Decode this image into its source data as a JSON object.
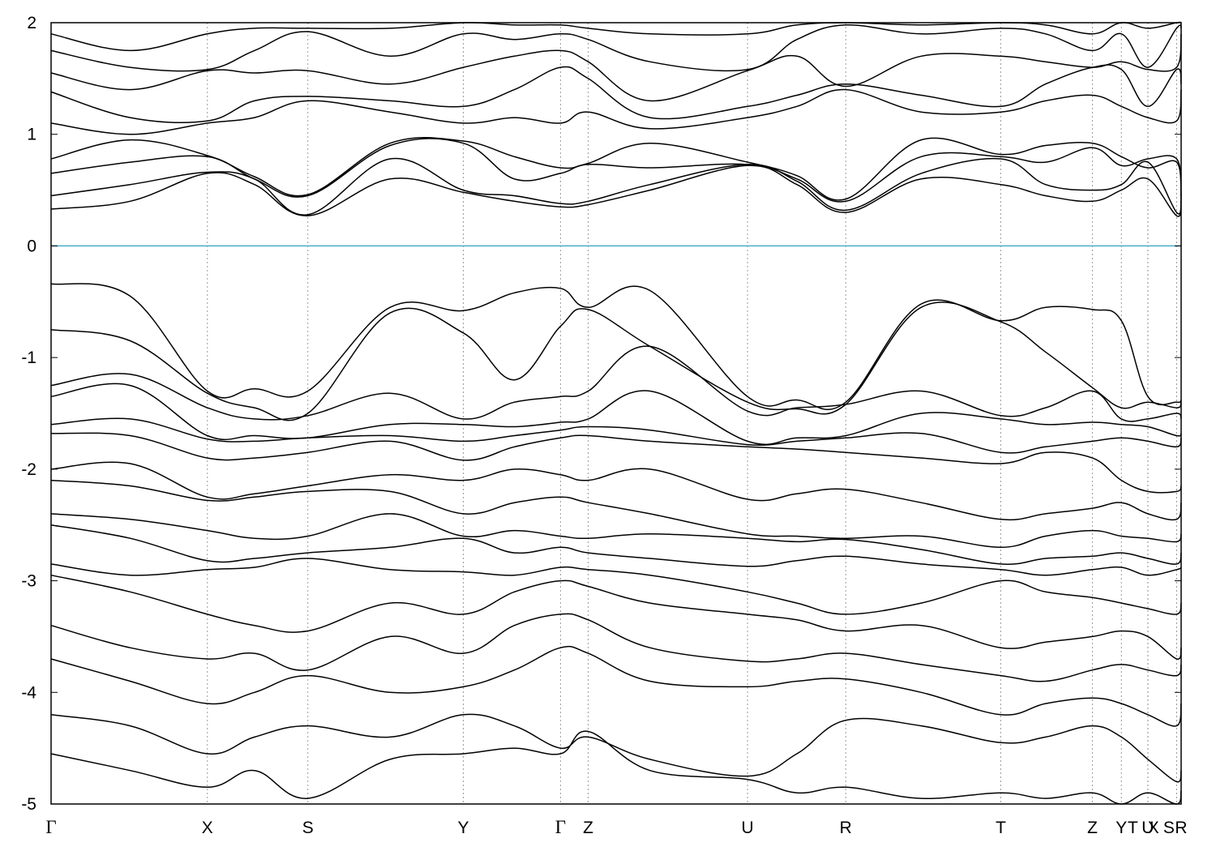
{
  "chart_data": {
    "type": "line",
    "title": "",
    "xlabel": "",
    "ylabel": "",
    "ylim": [
      -5,
      2
    ],
    "y_ticks": [
      2,
      1,
      0,
      -1,
      -2,
      -3,
      -4,
      -5
    ],
    "x_labels": [
      "Γ",
      "X",
      "S",
      "Y",
      "Γ",
      "Z",
      "U",
      "R",
      "T",
      "Z",
      "Y",
      "T",
      "U",
      "X",
      "S",
      "R"
    ],
    "kpoint_positions": [
      0.0,
      0.1383,
      0.2272,
      0.3648,
      0.4508,
      0.4753,
      0.6163,
      0.7032,
      0.8404,
      0.9215,
      0.9471,
      0.9706,
      0.9705,
      0.996,
      0.996,
      1.0
    ],
    "kpoint_label_positions": [
      0.0,
      0.1383,
      0.2272,
      0.3648,
      0.4508,
      0.4753,
      0.6163,
      0.7032,
      0.8404,
      0.9215,
      0.9471,
      0.9573,
      0.9705,
      0.9754,
      0.9892,
      1.0
    ],
    "fermi_level": 0,
    "fermi_color": "#4aaecc",
    "grid": "vertical dashed lines at high-symmetry points",
    "series_sample_x": [
      0.0,
      0.07,
      0.1383,
      0.18,
      0.2272,
      0.3,
      0.3648,
      0.41,
      0.4508,
      0.4753,
      0.53,
      0.6163,
      0.66,
      0.7032,
      0.77,
      0.8404,
      0.88,
      0.9215,
      0.9471,
      0.9706,
      0.996,
      1.0
    ],
    "series": [
      {
        "values": [
          -0.34,
          -0.45,
          -1.3,
          -1.28,
          -1.3,
          -0.55,
          -0.58,
          -0.42,
          -0.38,
          -0.55,
          -0.4,
          -1.35,
          -1.38,
          -1.4,
          -0.52,
          -0.67,
          -0.55,
          -0.57,
          -0.67,
          -1.35,
          -1.4,
          -1.38
        ]
      },
      {
        "values": [
          -0.75,
          -0.85,
          -1.32,
          -1.45,
          -1.5,
          -0.6,
          -0.78,
          -1.2,
          -0.72,
          -0.57,
          -0.9,
          -1.4,
          -1.46,
          -1.42,
          -0.55,
          -0.68,
          -0.95,
          -1.27,
          -1.45,
          -1.4,
          -1.45,
          -1.4
        ]
      },
      {
        "values": [
          -1.25,
          -1.15,
          -1.45,
          -1.55,
          -1.52,
          -1.32,
          -1.55,
          -1.4,
          -1.35,
          -1.3,
          -0.9,
          -1.48,
          -1.45,
          -1.42,
          -1.3,
          -1.52,
          -1.45,
          -1.3,
          -1.55,
          -1.55,
          -1.5,
          -1.55
        ]
      },
      {
        "values": [
          -1.35,
          -1.25,
          -1.7,
          -1.7,
          -1.72,
          -1.6,
          -1.6,
          -1.62,
          -1.58,
          -1.55,
          -1.3,
          -1.75,
          -1.72,
          -1.7,
          -1.5,
          -1.55,
          -1.6,
          -1.58,
          -1.6,
          -1.62,
          -1.7,
          -1.68
        ]
      },
      {
        "values": [
          -1.6,
          -1.55,
          -1.73,
          -1.75,
          -1.72,
          -1.7,
          -1.75,
          -1.7,
          -1.65,
          -1.62,
          -1.65,
          -1.78,
          -1.75,
          -1.72,
          -1.68,
          -1.85,
          -1.8,
          -1.75,
          -1.72,
          -1.75,
          -1.8,
          -1.72
        ]
      },
      {
        "values": [
          -1.68,
          -1.7,
          -1.9,
          -1.9,
          -1.85,
          -1.75,
          -1.92,
          -1.8,
          -1.72,
          -1.7,
          -1.75,
          -1.8,
          -1.82,
          -1.85,
          -1.9,
          -1.95,
          -1.85,
          -1.9,
          -2.1,
          -2.2,
          -2.2,
          -2.15
        ]
      },
      {
        "values": [
          -2.0,
          -1.95,
          -2.25,
          -2.22,
          -2.15,
          -2.05,
          -2.1,
          -2.0,
          -2.05,
          -2.1,
          -2.0,
          -2.27,
          -2.22,
          -2.18,
          -2.3,
          -2.45,
          -2.4,
          -2.35,
          -2.3,
          -2.4,
          -2.45,
          -2.3
        ]
      },
      {
        "values": [
          -2.1,
          -2.15,
          -2.28,
          -2.25,
          -2.2,
          -2.2,
          -2.4,
          -2.3,
          -2.25,
          -2.3,
          -2.4,
          -2.58,
          -2.6,
          -2.62,
          -2.6,
          -2.7,
          -2.6,
          -2.55,
          -2.6,
          -2.62,
          -2.65,
          -2.58
        ]
      },
      {
        "values": [
          -2.4,
          -2.45,
          -2.55,
          -2.62,
          -2.6,
          -2.4,
          -2.6,
          -2.55,
          -2.6,
          -2.62,
          -2.58,
          -2.62,
          -2.65,
          -2.63,
          -2.72,
          -2.85,
          -2.8,
          -2.78,
          -2.75,
          -2.8,
          -2.85,
          -2.75
        ]
      },
      {
        "values": [
          -2.5,
          -2.62,
          -2.82,
          -2.8,
          -2.75,
          -2.7,
          -2.62,
          -2.75,
          -2.7,
          -2.75,
          -2.8,
          -2.87,
          -2.82,
          -2.78,
          -2.85,
          -2.9,
          -2.95,
          -2.9,
          -2.88,
          -2.95,
          -2.9,
          -2.88
        ]
      },
      {
        "values": [
          -2.85,
          -2.95,
          -2.9,
          -2.88,
          -2.8,
          -2.9,
          -2.92,
          -2.95,
          -2.88,
          -2.9,
          -2.95,
          -3.1,
          -3.2,
          -3.3,
          -3.2,
          -3.0,
          -3.1,
          -3.15,
          -3.2,
          -3.25,
          -3.3,
          -3.2
        ]
      },
      {
        "values": [
          -2.95,
          -3.1,
          -3.3,
          -3.4,
          -3.45,
          -3.2,
          -3.3,
          -3.1,
          -3.0,
          -3.05,
          -3.2,
          -3.3,
          -3.35,
          -3.45,
          -3.4,
          -3.6,
          -3.55,
          -3.5,
          -3.45,
          -3.5,
          -3.7,
          -3.6
        ]
      },
      {
        "values": [
          -3.4,
          -3.6,
          -3.7,
          -3.65,
          -3.8,
          -3.5,
          -3.65,
          -3.4,
          -3.3,
          -3.35,
          -3.6,
          -3.72,
          -3.7,
          -3.65,
          -3.75,
          -3.85,
          -3.9,
          -3.8,
          -3.75,
          -3.8,
          -3.85,
          -3.75
        ]
      },
      {
        "values": [
          -3.7,
          -3.9,
          -4.1,
          -4.0,
          -3.85,
          -4.0,
          -3.95,
          -3.8,
          -3.6,
          -3.65,
          -3.9,
          -3.95,
          -3.9,
          -3.88,
          -4.0,
          -4.2,
          -4.1,
          -4.05,
          -4.1,
          -4.2,
          -4.3,
          -4.1
        ]
      },
      {
        "values": [
          -4.2,
          -4.3,
          -4.55,
          -4.4,
          -4.3,
          -4.4,
          -4.2,
          -4.3,
          -4.5,
          -4.4,
          -4.6,
          -4.75,
          -4.55,
          -4.25,
          -4.3,
          -4.45,
          -4.4,
          -4.3,
          -4.4,
          -4.6,
          -4.8,
          -4.7
        ]
      },
      {
        "values": [
          0.33,
          0.4,
          0.65,
          0.55,
          0.27,
          0.6,
          0.48,
          0.4,
          0.35,
          0.37,
          0.5,
          0.72,
          0.55,
          0.3,
          0.6,
          0.55,
          0.45,
          0.4,
          0.5,
          0.6,
          0.27,
          0.4
        ]
      },
      {
        "values": [
          0.45,
          0.55,
          0.66,
          0.6,
          0.28,
          0.78,
          0.5,
          0.45,
          0.38,
          0.4,
          0.55,
          0.73,
          0.58,
          0.32,
          0.65,
          0.78,
          0.55,
          0.5,
          0.55,
          0.75,
          0.3,
          0.42
        ]
      },
      {
        "values": [
          0.65,
          0.75,
          0.8,
          0.6,
          0.45,
          0.9,
          0.92,
          0.6,
          0.65,
          0.73,
          0.7,
          0.73,
          0.6,
          0.4,
          0.8,
          0.8,
          0.75,
          0.88,
          0.72,
          0.78,
          0.78,
          0.45
        ]
      },
      {
        "values": [
          0.78,
          0.95,
          0.81,
          0.62,
          0.46,
          0.92,
          0.94,
          0.8,
          0.7,
          0.74,
          0.92,
          0.75,
          0.63,
          0.42,
          0.95,
          0.82,
          0.9,
          0.92,
          0.8,
          0.7,
          0.75,
          0.42
        ]
      },
      {
        "values": [
          1.1,
          1.0,
          1.1,
          1.15,
          1.3,
          1.2,
          1.1,
          1.15,
          1.1,
          1.2,
          1.05,
          1.15,
          1.25,
          1.4,
          1.2,
          1.2,
          1.3,
          1.35,
          1.25,
          1.15,
          1.12,
          1.4
        ]
      },
      {
        "values": [
          1.38,
          1.15,
          1.12,
          1.3,
          1.34,
          1.3,
          1.25,
          1.4,
          1.6,
          1.5,
          1.15,
          1.25,
          1.35,
          1.45,
          1.35,
          1.25,
          1.45,
          1.6,
          1.58,
          1.25,
          1.58,
          1.45
        ]
      },
      {
        "values": [
          1.55,
          1.4,
          1.57,
          1.55,
          1.57,
          1.45,
          1.6,
          1.7,
          1.75,
          1.65,
          1.3,
          1.57,
          1.7,
          1.43,
          1.7,
          1.7,
          1.65,
          1.6,
          1.65,
          1.58,
          1.6,
          1.9
        ]
      },
      {
        "values": [
          1.75,
          1.6,
          1.58,
          1.75,
          1.92,
          1.7,
          1.9,
          1.85,
          1.9,
          1.85,
          1.65,
          1.58,
          1.85,
          1.98,
          1.9,
          1.95,
          1.9,
          1.75,
          1.9,
          1.6,
          1.95,
          1.95
        ]
      },
      {
        "values": [
          1.9,
          1.75,
          1.9,
          1.95,
          1.95,
          1.95,
          2.0,
          1.98,
          1.98,
          1.95,
          1.9,
          1.9,
          1.98,
          2.0,
          1.98,
          2.0,
          1.98,
          1.9,
          2.0,
          1.95,
          2.0,
          2.0
        ]
      },
      {
        "values": [
          -4.55,
          -4.7,
          -4.85,
          -4.7,
          -4.95,
          -4.6,
          -4.55,
          -4.5,
          -4.55,
          -4.35,
          -4.7,
          -4.78,
          -4.9,
          -4.85,
          -4.95,
          -4.9,
          -4.95,
          -4.9,
          -5.0,
          -4.9,
          -5.0,
          -4.88
        ]
      }
    ]
  }
}
